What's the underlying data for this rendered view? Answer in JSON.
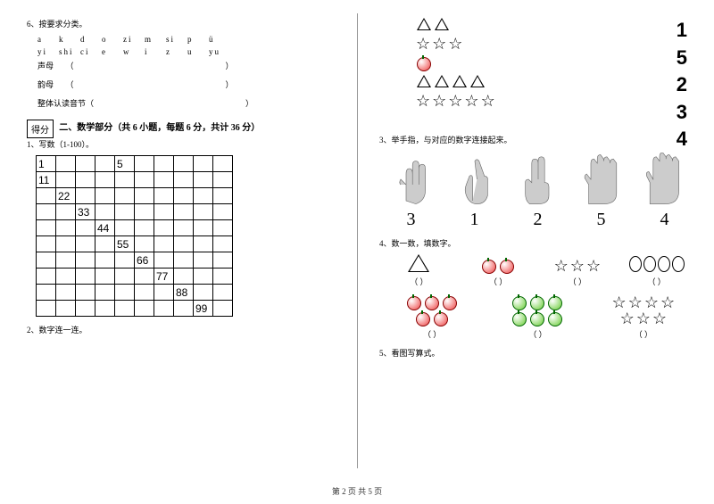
{
  "left": {
    "q6_title": "6、按要求分类。",
    "letters1": [
      "a",
      "k",
      "d",
      "o",
      "zi",
      "m",
      "si",
      "p",
      "ü"
    ],
    "letters2": [
      "yi",
      "shi",
      "ci",
      "e",
      "w",
      "i",
      "z",
      "u",
      "yu"
    ],
    "cat1": "声母",
    "cat2": "韵母",
    "cat3": "整体认读音节（",
    "score_label": "得分",
    "section2": "二、数学部分（共 6 小题，每题 6 分，共计 36 分）",
    "q1": "1、写数（1-100）。",
    "q2": "2、数字连一连。",
    "grid_values": {
      "0_0": "1",
      "0_4": "5",
      "1_0": "11",
      "2_1": "22",
      "3_2": "33",
      "4_3": "44",
      "5_4": "55",
      "6_5": "66",
      "7_6": "77",
      "8_7": "88",
      "9_8": "99"
    }
  },
  "right": {
    "nums": [
      "1",
      "5",
      "2",
      "3",
      "4"
    ],
    "q3": "3、举手指，与对应的数字连接起来。",
    "hand_nums": [
      "3",
      "1",
      "2",
      "5",
      "4"
    ],
    "q4": "4、数一数，填数字。",
    "q5": "5、看图写算式。",
    "paren": "（          ）"
  },
  "footer": "第 2 页 共 5 页",
  "colors": {
    "red": "#e44",
    "green": "#6c3"
  }
}
